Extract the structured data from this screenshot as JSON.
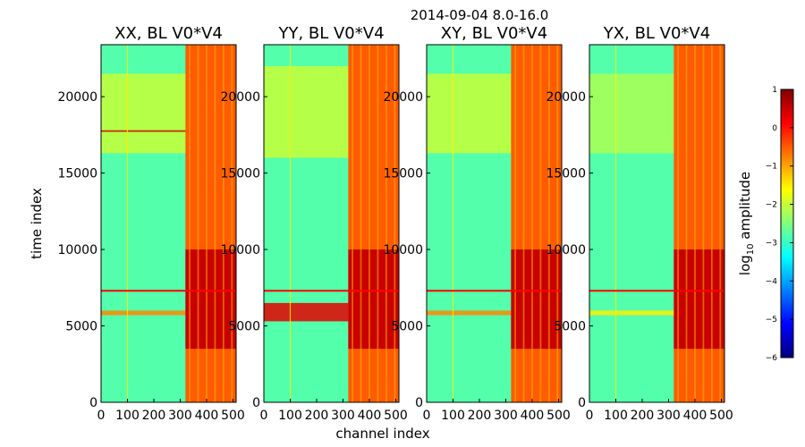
{
  "figure": {
    "suptitle": "2014-09-04 8.0-16.0"
  },
  "colors": {
    "colormap": [
      "#00007f",
      "#0000ff",
      "#007fff",
      "#00ffff",
      "#7fff7f",
      "#ffff00",
      "#ff7f00",
      "#ff0000",
      "#7f0000"
    ],
    "background_level": "#3fe0bf",
    "flag_line": "#ff0000"
  },
  "chart_data": [
    {
      "type": "heatmap",
      "title": "XX, BL V0*V4",
      "xlabel": "",
      "ylabel": "time index",
      "xlim": [
        0,
        512
      ],
      "ylim": [
        0,
        23400
      ],
      "xticks": [
        "0",
        "100",
        "200",
        "300",
        "400",
        "500"
      ],
      "yticks": [
        "0",
        "5000",
        "10000",
        "15000",
        "20000"
      ],
      "xtick_values": [
        0,
        100,
        200,
        300,
        400,
        500
      ],
      "ytick_values": [
        0,
        5000,
        10000,
        15000,
        20000
      ],
      "background_log10_amplitude": -2.8,
      "bright_channel_band": [
        320,
        512
      ],
      "band_log10_amplitude": -0.5,
      "band_core_log10_amplitude": 0.5,
      "band_core_time_range": [
        3500,
        10000
      ],
      "flag_line_time_index": 7300,
      "horizontal_features": [
        {
          "time_range": [
            5700,
            6000
          ],
          "log10_amplitude": -0.8
        },
        {
          "time_range": [
            16300,
            21500
          ],
          "log10_amplitude": -2.0
        },
        {
          "time_range": [
            17700,
            17800
          ],
          "log10_amplitude": 0.5
        }
      ],
      "vertical_features": [
        {
          "channel": 100,
          "log10_amplitude": -1.5
        }
      ]
    },
    {
      "type": "heatmap",
      "title": "YY, BL V0*V4",
      "xlabel": "",
      "ylabel": "",
      "xlim": [
        0,
        512
      ],
      "ylim": [
        0,
        23400
      ],
      "xticks": [
        "0",
        "100",
        "200",
        "300",
        "400",
        "500"
      ],
      "yticks": [
        "0",
        "5000",
        "10000",
        "15000",
        "20000"
      ],
      "xtick_values": [
        0,
        100,
        200,
        300,
        400,
        500
      ],
      "ytick_values": [
        0,
        5000,
        10000,
        15000,
        20000
      ],
      "background_log10_amplitude": -2.8,
      "bright_channel_band": [
        320,
        512
      ],
      "band_log10_amplitude": -0.5,
      "band_core_log10_amplitude": 0.5,
      "band_core_time_range": [
        3500,
        10000
      ],
      "flag_line_time_index": 7300,
      "horizontal_features": [
        {
          "time_range": [
            5300,
            6500
          ],
          "log10_amplitude": 0.3
        },
        {
          "time_range": [
            16000,
            22000
          ],
          "log10_amplitude": -2.0
        }
      ],
      "vertical_features": [
        {
          "channel": 100,
          "log10_amplitude": -1.5
        }
      ]
    },
    {
      "type": "heatmap",
      "title": "XY, BL V0*V4",
      "xlabel": "channel index",
      "ylabel": "",
      "xlim": [
        0,
        512
      ],
      "ylim": [
        0,
        23400
      ],
      "xticks": [
        "0",
        "100",
        "200",
        "300",
        "400",
        "500"
      ],
      "yticks": [
        "0",
        "5000",
        "10000",
        "15000",
        "20000"
      ],
      "xtick_values": [
        0,
        100,
        200,
        300,
        400,
        500
      ],
      "ytick_values": [
        0,
        5000,
        10000,
        15000,
        20000
      ],
      "background_log10_amplitude": -2.8,
      "bright_channel_band": [
        320,
        512
      ],
      "band_log10_amplitude": -0.5,
      "band_core_log10_amplitude": 0.5,
      "band_core_time_range": [
        3500,
        10000
      ],
      "flag_line_time_index": 7300,
      "horizontal_features": [
        {
          "time_range": [
            5700,
            6000
          ],
          "log10_amplitude": -0.8
        },
        {
          "time_range": [
            16300,
            21500
          ],
          "log10_amplitude": -2.0
        }
      ],
      "vertical_features": [
        {
          "channel": 100,
          "log10_amplitude": -1.5
        }
      ]
    },
    {
      "type": "heatmap",
      "title": "YX, BL V0*V4",
      "xlabel": "",
      "ylabel": "",
      "xlim": [
        0,
        512
      ],
      "ylim": [
        0,
        23400
      ],
      "xticks": [
        "0",
        "100",
        "200",
        "300",
        "400",
        "500"
      ],
      "yticks": [
        "0",
        "5000",
        "10000",
        "15000",
        "20000"
      ],
      "xtick_values": [
        0,
        100,
        200,
        300,
        400,
        500
      ],
      "ytick_values": [
        0,
        5000,
        10000,
        15000,
        20000
      ],
      "background_log10_amplitude": -2.8,
      "bright_channel_band": [
        320,
        512
      ],
      "band_log10_amplitude": -0.5,
      "band_core_log10_amplitude": 0.5,
      "band_core_time_range": [
        3500,
        10000
      ],
      "flag_line_time_index": 7300,
      "horizontal_features": [
        {
          "time_range": [
            5700,
            6000
          ],
          "log10_amplitude": -1.5
        },
        {
          "time_range": [
            16300,
            21500
          ],
          "log10_amplitude": -2.2
        }
      ],
      "vertical_features": [
        {
          "channel": 100,
          "log10_amplitude": -1.5
        }
      ]
    }
  ],
  "colorbar": {
    "label_prefix": "log",
    "label_sub": "10",
    "label_suffix": " amplitude",
    "range": [
      -6,
      1
    ],
    "ticks": [
      "1",
      "0",
      "−1",
      "−2",
      "−3",
      "−4",
      "−5",
      "−6"
    ],
    "tick_values": [
      1,
      0,
      -1,
      -2,
      -3,
      -4,
      -5,
      -6
    ]
  }
}
